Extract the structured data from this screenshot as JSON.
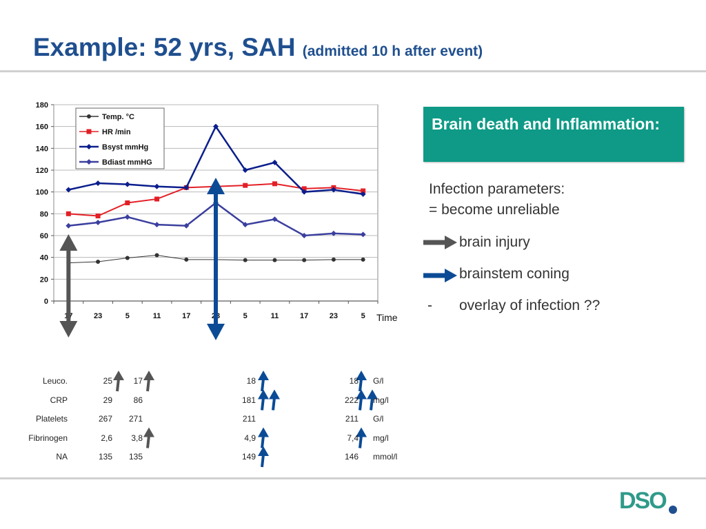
{
  "title": {
    "main": "Example: 52 yrs, SAH",
    "sub": "(admitted 10 h after event)"
  },
  "chart_data": {
    "type": "line",
    "categories": [
      "17",
      "23",
      "5",
      "11",
      "17",
      "23",
      "5",
      "11",
      "17",
      "23",
      "5"
    ],
    "xlabel": "Time",
    "ylim": [
      0,
      180
    ],
    "yticks": [
      0,
      20,
      40,
      60,
      80,
      100,
      120,
      140,
      160,
      180
    ],
    "grid": true,
    "legend_position": "top-left",
    "series": [
      {
        "name": "Temp. °C",
        "color": "#333333",
        "marker": "circle",
        "values": [
          35,
          36,
          39.5,
          42,
          38,
          38,
          37.5,
          37.5,
          37.5,
          38,
          38
        ]
      },
      {
        "name": "HR /min",
        "color": "#e31f26",
        "marker": "square",
        "values": [
          80,
          78,
          90,
          93.5,
          104,
          105,
          106,
          107.5,
          103,
          104,
          101
        ]
      },
      {
        "name": "Bsyst mmHg",
        "color": "#0b1e8c",
        "marker": "diamond",
        "values": [
          102,
          108,
          107,
          105,
          104,
          160,
          120,
          127,
          100,
          102,
          98
        ]
      },
      {
        "name": "Bdiast mmHG",
        "color": "#3b3f9e",
        "marker": "diamond",
        "values": [
          69,
          72,
          77,
          70,
          69,
          90,
          70,
          75,
          60,
          62,
          61
        ]
      }
    ],
    "annotations": [
      {
        "type": "vertical-double-arrow",
        "at_category_index": 0,
        "color": "#555555"
      },
      {
        "type": "vertical-double-arrow",
        "at_category_index": 5,
        "color": "#0b4b96"
      }
    ]
  },
  "callout": {
    "text": "Brain death and Inflammation:"
  },
  "bullets": {
    "line1": "Infection parameters:",
    "line2": "= become unreliable",
    "item1": "brain injury",
    "item2": "brainstem coning",
    "dash": "-",
    "item3": "overlay of infection ??"
  },
  "lab_table": {
    "rows": [
      {
        "label": "Leuco.",
        "v1": "25",
        "v2": "17",
        "v3": "18",
        "v4": "18",
        "unit": "G/l",
        "arrows": [
          {
            "col": "v1",
            "color": "grey"
          },
          {
            "col": "v2",
            "color": "grey"
          },
          {
            "col": "v3",
            "color": "blue"
          },
          {
            "col": "v4",
            "color": "blue"
          }
        ]
      },
      {
        "label": "CRP",
        "v1": "29",
        "v2": "86",
        "v3": "181",
        "v4": "222",
        "unit": "mg/l",
        "arrows": [
          {
            "col": "v3",
            "color": "blue"
          },
          {
            "col": "v3",
            "color": "blue"
          },
          {
            "col": "v4",
            "color": "blue"
          },
          {
            "col": "v4",
            "color": "blue"
          }
        ]
      },
      {
        "label": "Platelets",
        "v1": "267",
        "v2": "271",
        "v3": "211",
        "v4": "211",
        "unit": "G/l",
        "arrows": []
      },
      {
        "label": "Fibrinogen",
        "v1": "2,6",
        "v2": "3,8",
        "v3": "4,9",
        "v4": "7,4",
        "unit": "mg/l",
        "arrows": [
          {
            "col": "v2",
            "color": "grey"
          },
          {
            "col": "v3",
            "color": "blue"
          },
          {
            "col": "v4",
            "color": "blue"
          }
        ]
      },
      {
        "label": "NA",
        "v1": "135",
        "v2": "135",
        "v3": "149",
        "v4": "146",
        "unit": "mmol/l",
        "arrows": [
          {
            "col": "v3",
            "color": "blue"
          }
        ]
      }
    ]
  },
  "logo": {
    "text": "DSO"
  },
  "colors": {
    "title": "#1f4f8f",
    "accent": "#0e9a86",
    "grey_arrow": "#555555",
    "blue_arrow": "#0b4b96"
  }
}
